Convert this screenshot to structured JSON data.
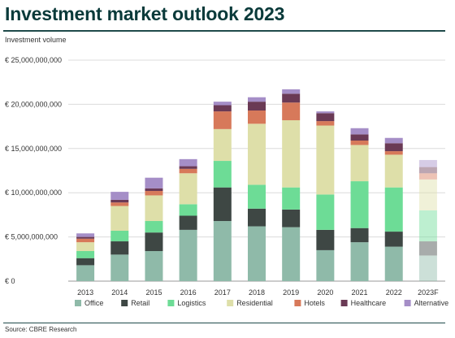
{
  "chart_data": {
    "type": "bar",
    "stacked": true,
    "title": "Investment market outlook 2023",
    "ylabel": "Investment volume",
    "source": "Source: CBRE Research",
    "categories": [
      "2013",
      "2014",
      "2015",
      "2016",
      "2017",
      "2018",
      "2019",
      "2020",
      "2021",
      "2022",
      "2023F"
    ],
    "ylim": [
      0,
      25000000000
    ],
    "yticks": [
      0,
      5000000000,
      10000000000,
      15000000000,
      20000000000,
      25000000000
    ],
    "ytick_labels": [
      "€ 0",
      "€ 5,000,000,000",
      "€ 10,000,000,000",
      "€ 15,000,000,000",
      "€ 20,000,000,000",
      "€ 25,000,000,000"
    ],
    "grid": true,
    "legend_position": "bottom",
    "faded_categories": [
      "2023F"
    ],
    "series": [
      {
        "name": "Office",
        "color": "#8fbaa9",
        "values": [
          1800000000,
          3000000000,
          3400000000,
          5800000000,
          6800000000,
          6200000000,
          6100000000,
          3500000000,
          4400000000,
          3900000000,
          2900000000
        ]
      },
      {
        "name": "Retail",
        "color": "#3e4744",
        "values": [
          800000000,
          1500000000,
          2100000000,
          1600000000,
          3800000000,
          2000000000,
          2000000000,
          2300000000,
          1600000000,
          1700000000,
          1600000000
        ]
      },
      {
        "name": "Logistics",
        "color": "#6ddc96",
        "values": [
          800000000,
          1200000000,
          1300000000,
          1300000000,
          3000000000,
          2700000000,
          2500000000,
          4000000000,
          5300000000,
          5000000000,
          3500000000
        ]
      },
      {
        "name": "Residential",
        "color": "#dedfa9",
        "values": [
          1000000000,
          2800000000,
          2900000000,
          3500000000,
          3600000000,
          6900000000,
          7600000000,
          7800000000,
          4100000000,
          3700000000,
          3500000000
        ]
      },
      {
        "name": "Hotels",
        "color": "#d7795a",
        "values": [
          400000000,
          400000000,
          500000000,
          500000000,
          2000000000,
          1500000000,
          2000000000,
          500000000,
          500000000,
          400000000,
          700000000
        ]
      },
      {
        "name": "Healthcare",
        "color": "#6a3a55",
        "values": [
          200000000,
          300000000,
          300000000,
          300000000,
          700000000,
          1000000000,
          1000000000,
          900000000,
          700000000,
          900000000,
          700000000
        ]
      },
      {
        "name": "Alternative",
        "color": "#a58ec7",
        "values": [
          400000000,
          900000000,
          1200000000,
          800000000,
          400000000,
          500000000,
          500000000,
          200000000,
          700000000,
          600000000,
          800000000
        ]
      }
    ]
  }
}
